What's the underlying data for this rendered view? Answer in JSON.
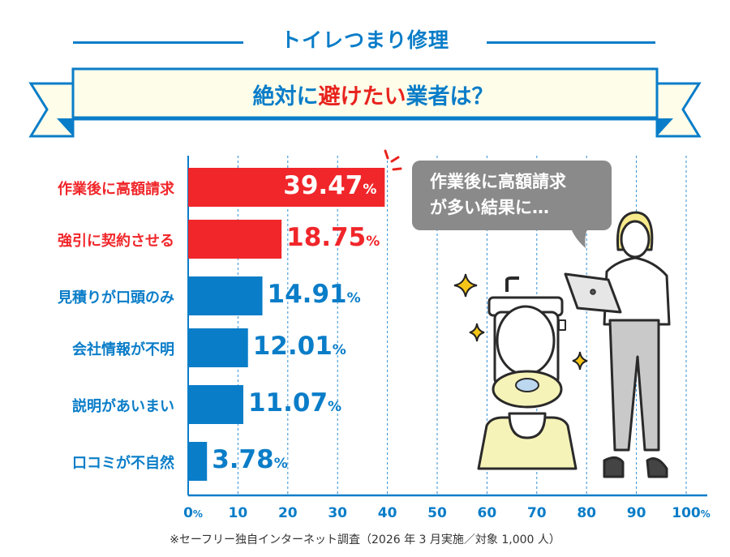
{
  "header": {
    "title": "トイレつまり修理",
    "banner": {
      "part1": "絶対に",
      "highlight": "避けたい",
      "part2": "業者は？"
    }
  },
  "bubble": {
    "line1": "作業後に高額請求",
    "line2": "が多い結果に…"
  },
  "footnote": "※セーフリー独自インターネット調査（2026 年 3 月実施／対象 1,000 人）",
  "colors": {
    "accent_blue": "#0a7dc8",
    "accent_red": "#e8231e",
    "banner_bg": "#fdfdea"
  },
  "chart_data": {
    "type": "bar",
    "orientation": "horizontal",
    "categories": [
      "作業後に高額請求",
      "強引に契約させる",
      "見積りが口頭のみ",
      "会社情報が不明",
      "説明があいまい",
      "口コミが不自然"
    ],
    "values": [
      39.47,
      18.75,
      14.91,
      12.01,
      11.07,
      3.78
    ],
    "value_labels": [
      "39.47",
      "18.75",
      "14.91",
      "12.01",
      "11.07",
      "3.78"
    ],
    "value_unit": "%",
    "bar_colors": [
      "#f0262a",
      "#f0262a",
      "#0a7dc8",
      "#0a7dc8",
      "#0a7dc8",
      "#0a7dc8"
    ],
    "xlim": [
      0,
      100
    ],
    "x_ticks": [
      "0",
      "10",
      "20",
      "30",
      "40",
      "50",
      "60",
      "70",
      "80",
      "90",
      "100"
    ],
    "x_tick_unit": "%",
    "grid": "vertical dotted"
  }
}
